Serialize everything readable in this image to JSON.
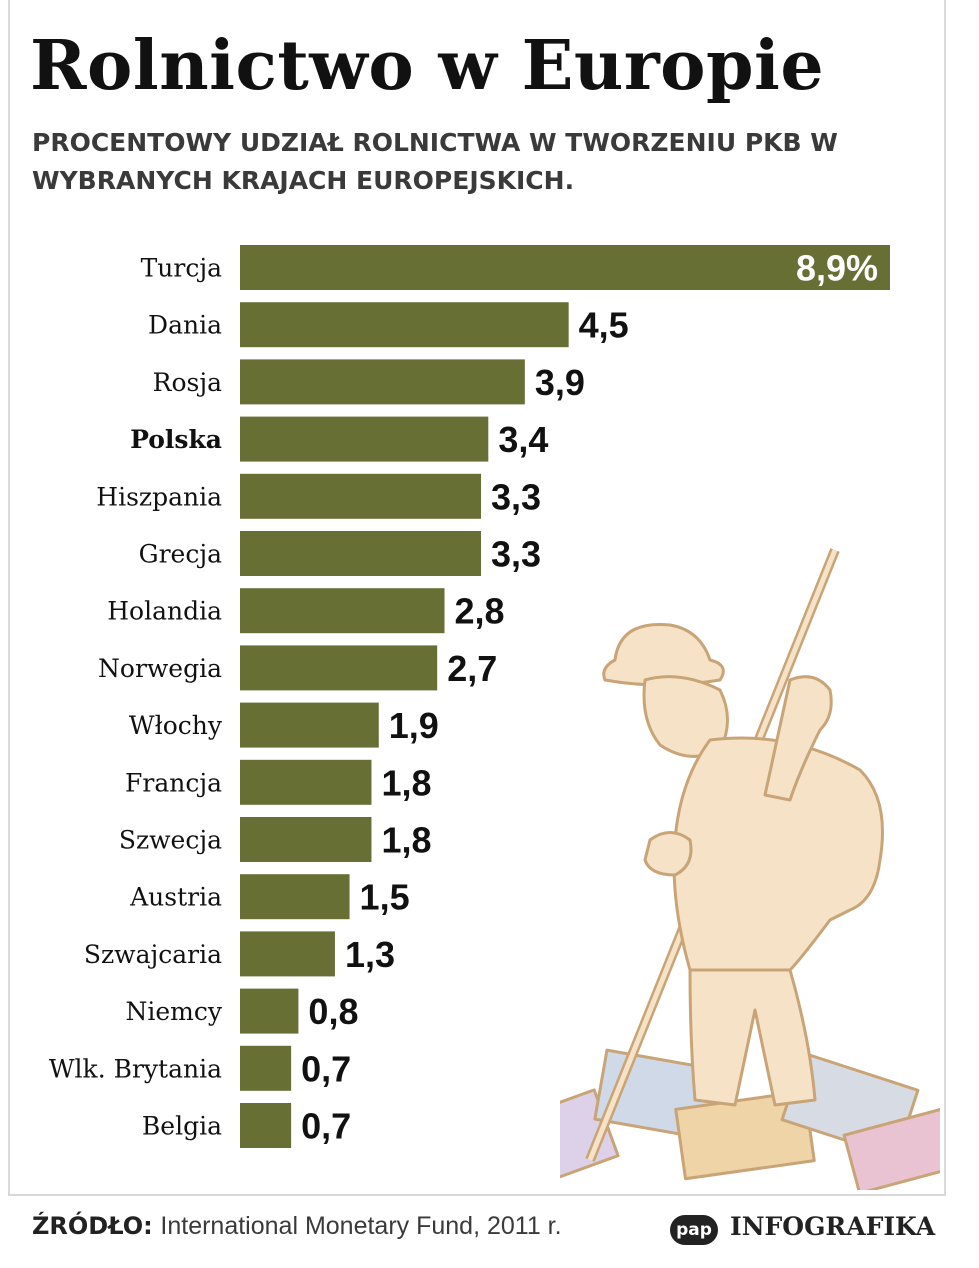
{
  "header": {
    "title": "Rolnictwo w Europie",
    "subtitle": "PROCENTOWY UDZIAŁ ROLNICTWA W TWORZENIU PKB W WYBRANYCH KRAJACH EUROPEJSKICH."
  },
  "chart_data": {
    "type": "bar",
    "orientation": "horizontal",
    "categories": [
      "Turcja",
      "Dania",
      "Rosja",
      "Polska",
      "Hiszpania",
      "Grecja",
      "Holandia",
      "Norwegia",
      "Włochy",
      "Francja",
      "Szwecja",
      "Austria",
      "Szwajcaria",
      "Niemcy",
      "Wlk. Brytania",
      "Belgia"
    ],
    "values": [
      8.9,
      4.5,
      3.9,
      3.4,
      3.3,
      3.3,
      2.8,
      2.7,
      1.9,
      1.8,
      1.8,
      1.5,
      1.3,
      0.8,
      0.7,
      0.7
    ],
    "value_labels": [
      "8,9%",
      "4,5",
      "3,9",
      "3,4",
      "3,3",
      "3,3",
      "2,8",
      "2,7",
      "1,9",
      "1,8",
      "1,8",
      "1,5",
      "1,3",
      "0,8",
      "0,7",
      "0,7"
    ],
    "highlighted_category": "Polska",
    "bar_color": "#676f35",
    "xlim": [
      0,
      8.9
    ],
    "grid": false,
    "legend": "none"
  },
  "footer": {
    "source_label": "ŹRÓDŁO:",
    "source_text": "International Monetary Fund, 2011 r.",
    "logo": "pap",
    "brand": "INFOGRAFIKA"
  },
  "illustration": {
    "name": "farmer-with-euro-banknotes-illustration",
    "color": "#f3d9b5"
  }
}
